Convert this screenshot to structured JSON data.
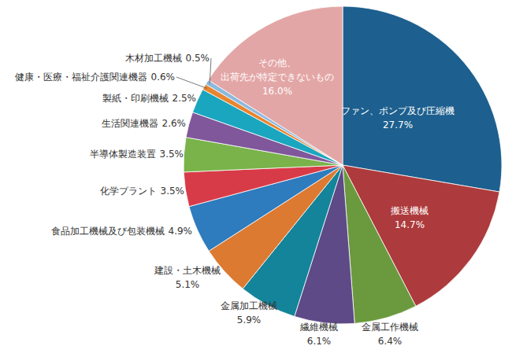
{
  "chart_data": {
    "type": "pie",
    "categories": [
      "ファン、ポンプ及び圧縮機",
      "搬送機械",
      "金属工作機械",
      "繊維機械",
      "金属加工機械",
      "建設・土木機械",
      "食品加工機械及び包装機械",
      "化学プラント",
      "半導体製造装置",
      "生活関連機器",
      "製紙・印刷機械",
      "健康・医療・福祉介護関連機器",
      "木材加工機械",
      "その他、出荷先が特定できないもの"
    ],
    "values": [
      27.7,
      14.7,
      6.4,
      6.1,
      5.9,
      5.1,
      4.9,
      3.5,
      3.5,
      2.6,
      2.5,
      0.6,
      0.5,
      16.0
    ],
    "value_labels": [
      "27.7%",
      "14.7%",
      "6.4%",
      "6.1%",
      "5.9%",
      "5.1%",
      "4.9%",
      "3.5%",
      "3.5%",
      "2.6%",
      "2.5%",
      "0.6%",
      "0.5%",
      "16.0%"
    ],
    "colors": [
      "#1d5f8e",
      "#ad3a3c",
      "#6b9a3e",
      "#5e4a86",
      "#13849a",
      "#dd7a32",
      "#2e7bbd",
      "#d83b48",
      "#79b34a",
      "#80579b",
      "#1aa6bf",
      "#e8852f",
      "#8cb9df",
      "#e3a6a6"
    ],
    "data_labels": true
  }
}
